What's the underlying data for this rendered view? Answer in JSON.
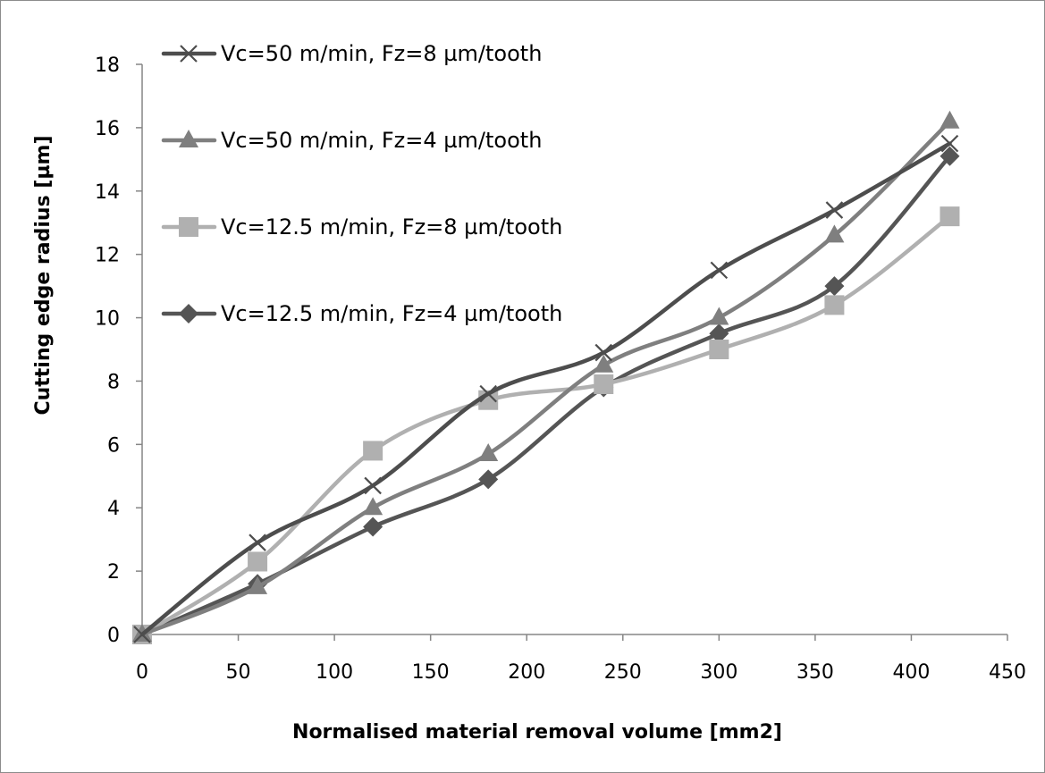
{
  "chart_data": {
    "type": "line",
    "xlabel": "Normalised material removal volume [mm2]",
    "ylabel": "Cutting edge radius [µm]",
    "xlim": [
      0,
      450
    ],
    "ylim": [
      0,
      18
    ],
    "x_ticks": [
      0,
      50,
      100,
      150,
      200,
      250,
      300,
      350,
      400,
      450
    ],
    "y_ticks": [
      0,
      2,
      4,
      6,
      8,
      10,
      12,
      14,
      16,
      18
    ],
    "grid": false,
    "legend_position": "top-left",
    "smooth_lines": true,
    "x": [
      0,
      60,
      120,
      180,
      240,
      300,
      360,
      420
    ],
    "series": [
      {
        "name": "Vc=50 m/min, Fz=8 µm/tooth",
        "marker": "x",
        "color": "#4d4d4d",
        "values": [
          0,
          2.9,
          4.7,
          7.6,
          8.9,
          11.5,
          13.4,
          15.5
        ]
      },
      {
        "name": "Vc=50 m/min, Fz=4 µm/tooth",
        "marker": "triangle",
        "color": "#7f7f7f",
        "values": [
          0,
          1.5,
          4.0,
          5.7,
          8.5,
          10.0,
          12.6,
          16.2
        ]
      },
      {
        "name": "Vc=12.5 m/min, Fz=8 µm/tooth",
        "marker": "square",
        "color": "#b0b0b0",
        "values": [
          0,
          2.3,
          5.8,
          7.4,
          7.9,
          9.0,
          10.4,
          13.2
        ]
      },
      {
        "name": "Vc=12.5 m/min, Fz=4 µm/tooth",
        "marker": "diamond",
        "color": "#555555",
        "values": [
          0,
          1.6,
          3.4,
          4.9,
          7.8,
          9.5,
          11.0,
          15.1
        ]
      }
    ]
  }
}
